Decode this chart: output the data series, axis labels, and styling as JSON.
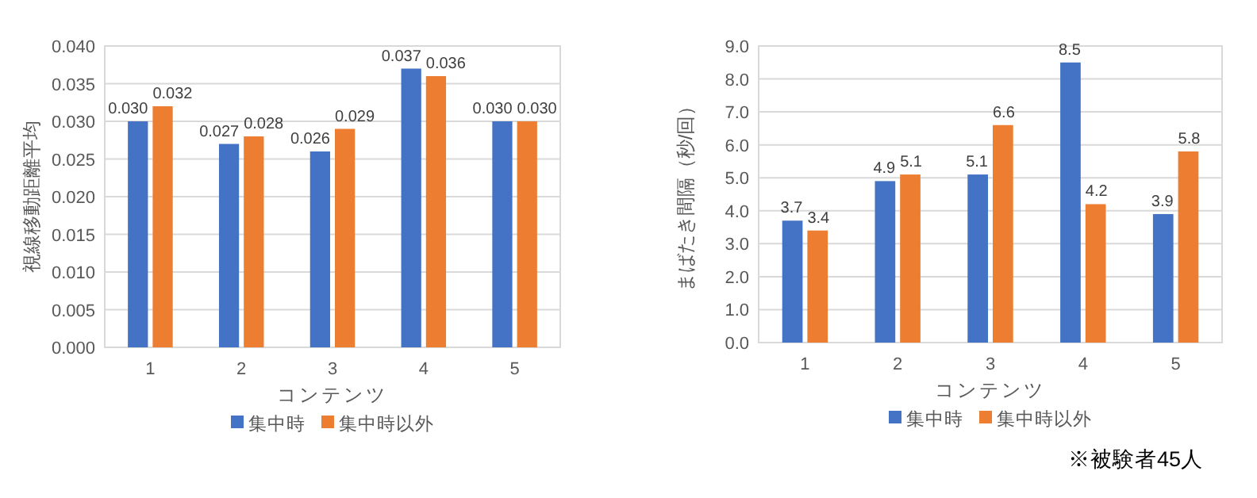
{
  "chart_data": [
    {
      "type": "bar",
      "xlabel": "コンテンツ",
      "ylabel": "視線移動距離平均",
      "categories": [
        "1",
        "2",
        "3",
        "4",
        "5"
      ],
      "series": [
        {
          "name": "集中時",
          "color": "#4472c4",
          "values": [
            0.03,
            0.027,
            0.026,
            0.037,
            0.03
          ],
          "value_labels": [
            "0.030",
            "0.027",
            "0.026",
            "0.037",
            "0.030"
          ]
        },
        {
          "name": "集中時以外",
          "color": "#ed7d31",
          "values": [
            0.032,
            0.028,
            0.029,
            0.036,
            0.03
          ],
          "value_labels": [
            "0.032",
            "0.028",
            "0.029",
            "0.036",
            "0.030"
          ]
        }
      ],
      "ylim": [
        0,
        0.04
      ],
      "yticks": [
        {
          "value": 0,
          "label": "0.000"
        },
        {
          "value": 0.005,
          "label": "0.005"
        },
        {
          "value": 0.01,
          "label": "0.010"
        },
        {
          "value": 0.015,
          "label": "0.015"
        },
        {
          "value": 0.02,
          "label": "0.020"
        },
        {
          "value": 0.025,
          "label": "0.025"
        },
        {
          "value": 0.03,
          "label": "0.030"
        },
        {
          "value": 0.035,
          "label": "0.035"
        },
        {
          "value": 0.04,
          "label": "0.040"
        }
      ],
      "grid": "y",
      "legend": "bottom"
    },
    {
      "type": "bar",
      "xlabel": "コンテンツ",
      "ylabel": "まばたき間隔（秒/回）",
      "categories": [
        "1",
        "2",
        "3",
        "4",
        "5"
      ],
      "series": [
        {
          "name": "集中時",
          "color": "#4472c4",
          "values": [
            3.7,
            4.9,
            5.1,
            8.5,
            3.9
          ],
          "value_labels": [
            "3.7",
            "4.9",
            "5.1",
            "8.5",
            "3.9"
          ]
        },
        {
          "name": "集中時以外",
          "color": "#ed7d31",
          "values": [
            3.4,
            5.1,
            6.6,
            4.2,
            5.8
          ],
          "value_labels": [
            "3.4",
            "5.1",
            "6.6",
            "4.2",
            "5.8"
          ]
        }
      ],
      "ylim": [
        0,
        9
      ],
      "yticks": [
        {
          "value": 0,
          "label": "0.0"
        },
        {
          "value": 1,
          "label": "1.0"
        },
        {
          "value": 2,
          "label": "2.0"
        },
        {
          "value": 3,
          "label": "3.0"
        },
        {
          "value": 4,
          "label": "4.0"
        },
        {
          "value": 5,
          "label": "5.0"
        },
        {
          "value": 6,
          "label": "6.0"
        },
        {
          "value": 7,
          "label": "7.0"
        },
        {
          "value": 8,
          "label": "8.0"
        },
        {
          "value": 9,
          "label": "9.0"
        }
      ],
      "grid": "y",
      "legend": "bottom",
      "annotations": [
        "※被験者45人"
      ]
    }
  ]
}
